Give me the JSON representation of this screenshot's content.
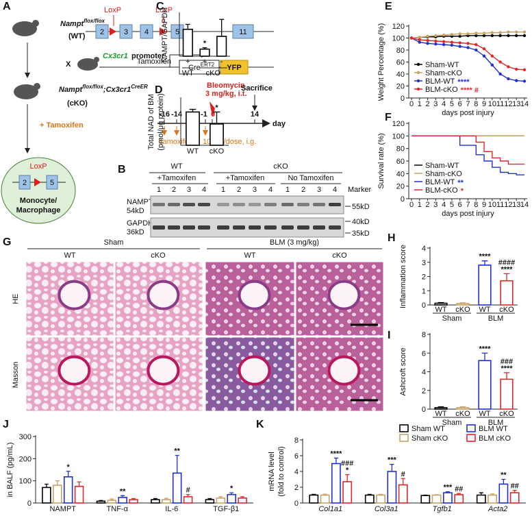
{
  "panel_labels": [
    "A",
    "B",
    "C",
    "D",
    "E",
    "F",
    "G",
    "H",
    "I",
    "J",
    "K"
  ],
  "schematic": {
    "mouse_wt": {
      "gene": "Nampt",
      "sup": "flox/flox",
      "label": "(WT)"
    },
    "loxp": [
      "LoxP",
      "LoxP"
    ],
    "exons": [
      "2",
      "3",
      "4",
      "5",
      "11"
    ],
    "cross": "X",
    "promoter_gene": "Cx3cr1",
    "promoter": "promoter",
    "cre": "Cre",
    "cre_sup": "ERT2",
    "yfp": "YFP",
    "mouse_cko": {
      "gene": "Nampt",
      "sup": "flox/flox",
      "cross_gene": ";Cx3cr1",
      "cross_sup": "CreER",
      "label": "(cKO)"
    },
    "treatment": "+ Tamoxifen",
    "bleomycin": "Bleomycin",
    "bleomycin_dose": "3 mg/kg, i.t.",
    "sacrifice": "Sacrifice",
    "timeline_ticks": [
      "-16",
      "-14",
      "-1",
      "0",
      "14"
    ],
    "timeline_unit": "day",
    "tamoxifen": "Tamoxifen",
    "tamoxifen_dose": "10 mg/dose, i.g.",
    "cell": {
      "loxp": "LoxP",
      "exons": [
        "2",
        "5"
      ],
      "label": [
        "Monocyte/",
        "Macrophage"
      ]
    }
  },
  "blot": {
    "groups": [
      {
        "name": "WT",
        "sub": [
          "+Tamoxifen"
        ]
      },
      {
        "name": "cKO",
        "sub": [
          "+Tamoxifen",
          "No Tamoxifen"
        ]
      }
    ],
    "lanes": [
      "1",
      "2",
      "3",
      "4"
    ],
    "marker": "Marker",
    "rows": [
      {
        "protein": "NAMPT",
        "size": "54kD",
        "markers": [
          "55kD"
        ]
      },
      {
        "protein": "GAPDH",
        "size": "36kD",
        "markers": [
          "40kD",
          "35kD"
        ]
      }
    ]
  },
  "histology": {
    "groups": [
      {
        "name": "Sham",
        "columns": [
          "WT",
          "cKO"
        ]
      },
      {
        "name": "BLM (3 mg/kg)",
        "columns": [
          "WT",
          "cKO"
        ]
      }
    ],
    "rows": [
      "HE",
      "Masson"
    ]
  },
  "chart_data": [
    {
      "type": "bar",
      "ylabel": [
        "NAMPT/GAPDH"
      ],
      "category_title": "Tamoxifen",
      "categories": [
        "+",
        "+",
        "-"
      ],
      "groups": [
        {
          "name": "WT",
          "size": 1
        },
        {
          "name": "cKO",
          "size": 2
        }
      ],
      "values": [
        1.9,
        0.5,
        1.4
      ],
      "errors": [
        0.35,
        0.1,
        1.2
      ],
      "color": "#000000",
      "ylim": [
        0,
        3
      ],
      "annotations": [
        null,
        [
          "*"
        ],
        null
      ]
    },
    {
      "type": "bar",
      "ylabel": [
        "Total NAD of BM",
        "(pmol/μg protein)"
      ],
      "categories": [
        "WT",
        "cKO"
      ],
      "values": [
        2.5,
        1.6
      ],
      "errors": [
        0.2,
        0.9
      ],
      "color": "#000000",
      "ylim": [
        0,
        3.5
      ],
      "annotations": [
        null,
        [
          "*"
        ]
      ]
    },
    {
      "type": "line",
      "ylabel": [
        "Weight Percentage (%)"
      ],
      "xlabel": "days post injury",
      "x": [
        0,
        1,
        2,
        3,
        4,
        5,
        6,
        7,
        8,
        9,
        10,
        11,
        12,
        13,
        14
      ],
      "xlim": [
        0,
        14
      ],
      "xticks": [
        0,
        1,
        2,
        3,
        4,
        5,
        6,
        7,
        8,
        9,
        10,
        11,
        12,
        13,
        14
      ],
      "ylim": [
        0,
        120
      ],
      "yticks": [
        0,
        20,
        40,
        60,
        80,
        100,
        120
      ],
      "legend": "lower left",
      "markers": true,
      "series": [
        {
          "name": "Sham-WT",
          "color": "#000000",
          "values": [
            100,
            101,
            102,
            102,
            103,
            103,
            103,
            104,
            104,
            104,
            104,
            104,
            104,
            104,
            104
          ]
        },
        {
          "name": "Sham-cKO",
          "color": "#c8a165",
          "values": [
            100,
            101,
            103,
            104,
            105,
            106,
            107,
            107,
            108,
            108,
            109,
            109,
            110,
            110,
            110
          ]
        },
        {
          "name": "BLM-WT",
          "color": "#1f2fd6",
          "note": "****",
          "values": [
            100,
            93,
            91,
            90,
            89,
            88,
            86,
            84,
            80,
            70,
            55,
            40,
            32,
            29,
            28
          ]
        },
        {
          "name": "BLM-cKO",
          "color": "#e3262a",
          "note": "**** #",
          "values": [
            100,
            97,
            96,
            95,
            94,
            93,
            92,
            91,
            89,
            82,
            70,
            60,
            52,
            48,
            47
          ]
        }
      ]
    },
    {
      "type": "line",
      "step": true,
      "ylabel": [
        "Survival rate (%)"
      ],
      "xlabel": "days post injury",
      "x": [
        0,
        1,
        2,
        3,
        4,
        5,
        6,
        7,
        8,
        9,
        10,
        11,
        12,
        13,
        14
      ],
      "xlim": [
        0,
        14
      ],
      "xticks": [
        0,
        1,
        2,
        3,
        4,
        5,
        6,
        7,
        8,
        9,
        10,
        11,
        12,
        13,
        14
      ],
      "ylim": [
        0,
        120
      ],
      "yticks": [
        0,
        20,
        40,
        60,
        80,
        100,
        120
      ],
      "legend": "lower left",
      "markers": false,
      "series": [
        {
          "name": "Sham-WT",
          "color": "#000000",
          "values": [
            100,
            100,
            100,
            100,
            100,
            100,
            100,
            100,
            100,
            100,
            100,
            100,
            100,
            100,
            100
          ]
        },
        {
          "name": "Sham-cKO",
          "color": "#c8a165",
          "values": [
            100,
            100,
            100,
            100,
            100,
            100,
            100,
            100,
            100,
            100,
            100,
            100,
            100,
            100,
            100
          ]
        },
        {
          "name": "BLM-WT",
          "color": "#1f2fd6",
          "note": "**",
          "values": [
            100,
            100,
            100,
            100,
            100,
            100,
            85,
            85,
            70,
            60,
            50,
            42,
            40,
            38,
            38
          ]
        },
        {
          "name": "BLM-cKO",
          "color": "#e3262a",
          "note": "*",
          "values": [
            100,
            100,
            100,
            100,
            100,
            100,
            100,
            100,
            90,
            75,
            65,
            60,
            55,
            55,
            55
          ]
        }
      ]
    },
    {
      "type": "bar",
      "ylabel": [
        "Inflammation score"
      ],
      "categories": [
        "WT",
        "cKO",
        "WT",
        "cKO"
      ],
      "groups": [
        {
          "name": "Sham",
          "size": 2
        },
        {
          "name": "BLM",
          "size": 2
        }
      ],
      "values": [
        0.12,
        0.1,
        2.8,
        1.7
      ],
      "errors": [
        0.05,
        0.05,
        0.3,
        0.5
      ],
      "colors": [
        "#000000",
        "#c8a165",
        "#1f2fd6",
        "#e3262a"
      ],
      "ylim": [
        0,
        4
      ],
      "yticks": [
        0,
        1,
        2,
        3,
        4
      ],
      "annotations": [
        null,
        null,
        [
          "****"
        ],
        [
          "####",
          "****"
        ]
      ]
    },
    {
      "type": "bar",
      "ylabel": [
        "Ashcroft score"
      ],
      "categories": [
        "WT",
        "cKO",
        "WT",
        "cKO"
      ],
      "groups": [
        {
          "name": "Sham",
          "size": 2
        },
        {
          "name": "BLM",
          "size": 2
        }
      ],
      "values": [
        0.15,
        0.15,
        5.2,
        3.2
      ],
      "errors": [
        0.1,
        0.1,
        0.8,
        0.7
      ],
      "colors": [
        "#000000",
        "#c8a165",
        "#1f2fd6",
        "#e3262a"
      ],
      "ylim": [
        0,
        8
      ],
      "yticks": [
        0,
        2,
        4,
        6,
        8
      ],
      "annotations": [
        null,
        null,
        [
          "****"
        ],
        [
          "###",
          "****"
        ]
      ]
    },
    {
      "type": "grouped_bar",
      "ylabel": [
        "in BALF (pg/mL)"
      ],
      "categories": [
        "NAMPT",
        "TNF-α",
        "IL-6",
        "TGF-β1"
      ],
      "ylim": [
        0,
        300
      ],
      "yticks": [
        0,
        100,
        200,
        300
      ],
      "series": [
        {
          "color": "#000000",
          "values": [
            70,
            8,
            15,
            15
          ],
          "errors": [
            15,
            3,
            5,
            5
          ]
        },
        {
          "color": "#c8a165",
          "values": [
            80,
            12,
            15,
            22
          ],
          "errors": [
            20,
            6,
            6,
            6
          ]
        },
        {
          "color": "#1f2fd6",
          "values": [
            118,
            25,
            135,
            38
          ],
          "errors": [
            25,
            8,
            80,
            8
          ],
          "annotations": [
            [
              "*"
            ],
            [
              "**"
            ],
            [
              "**"
            ],
            [
              "*"
            ]
          ]
        },
        {
          "color": "#e3262a",
          "values": [
            75,
            15,
            28,
            22
          ],
          "errors": [
            20,
            5,
            10,
            6
          ],
          "annotations": [
            null,
            null,
            [
              "#"
            ],
            null
          ]
        }
      ]
    },
    {
      "type": "grouped_bar",
      "ylabel": [
        "mRNA level",
        "(fold to control)"
      ],
      "categories": [
        "Col1a1",
        "Col3a1",
        "Tgfb1",
        "Acta2"
      ],
      "italic_categories": true,
      "ylim": [
        0,
        8
      ],
      "yticks": [
        0,
        2,
        4,
        6,
        8
      ],
      "legend": "upper right",
      "series": [
        {
          "name": "Sham WT",
          "color": "#000000",
          "values": [
            1,
            1,
            0.95,
            1
          ],
          "errors": [
            0.1,
            0.1,
            0.05,
            0.3
          ]
        },
        {
          "name": "Sham cKO",
          "color": "#c8a165",
          "values": [
            1,
            1,
            1,
            1
          ],
          "errors": [
            0.12,
            0.1,
            0.05,
            0.15
          ]
        },
        {
          "name": "BLM WT",
          "color": "#1f2fd6",
          "values": [
            5,
            4,
            1.3,
            2.4
          ],
          "errors": [
            0.7,
            0.9,
            0.12,
            0.6
          ],
          "annotations": [
            [
              "****"
            ],
            [
              "***"
            ],
            [
              "***"
            ],
            [
              "**"
            ]
          ]
        },
        {
          "name": "BLM cKO",
          "color": "#e3262a",
          "values": [
            2.7,
            2.3,
            1.05,
            1.3
          ],
          "errors": [
            0.9,
            0.8,
            0.15,
            0.3
          ],
          "annotations": [
            [
              "###",
              "*"
            ],
            [
              "#"
            ],
            [
              "##"
            ],
            [
              "##"
            ]
          ]
        }
      ]
    }
  ]
}
